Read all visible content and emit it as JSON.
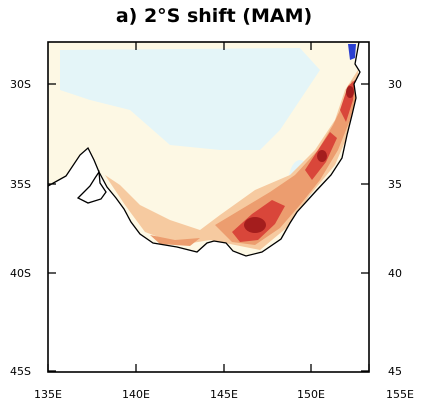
{
  "title": "a) 2°S shift (MAM)",
  "axes": {
    "lat_ticks": [
      "30S",
      "35S",
      "40S",
      "45S"
    ],
    "lat_ticks_right": [
      "30",
      "35",
      "40",
      "45"
    ],
    "lon_ticks": [
      "135E",
      "140E",
      "145E",
      "150E",
      "155E"
    ]
  },
  "map": {
    "region": "south-eastern Australia",
    "lon_range": [
      135,
      155
    ],
    "lat_range": [
      -28,
      -45
    ],
    "colors": {
      "land_base": "#fdf8e4",
      "pale_cyan": "#e4f5f8",
      "light_orange": "#f6caa0",
      "orange": "#ec9d6f",
      "red": "#d9463a",
      "dark_red": "#a41d1d",
      "blue": "#2a3fd1",
      "coastline": "#000000"
    }
  }
}
